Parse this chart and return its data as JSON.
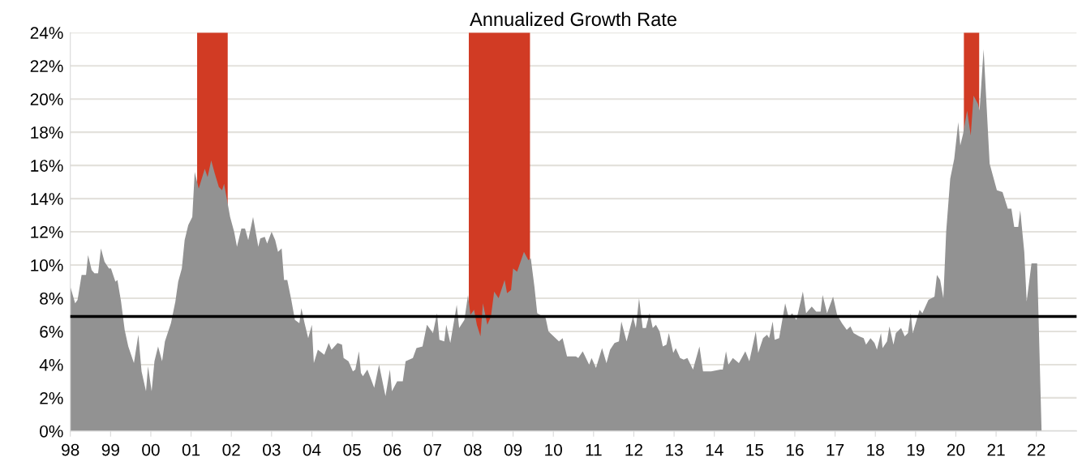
{
  "chart_data": {
    "type": "area",
    "title": "Annualized Growth Rate",
    "series": [
      {
        "color": "#929292",
        "x": [
          1998.0,
          1998.12,
          1998.18,
          1998.28,
          1998.39,
          1998.44,
          1998.53,
          1998.6,
          1998.69,
          1998.76,
          1998.85,
          1998.96,
          1999.01,
          1999.12,
          1999.17,
          1999.26,
          1999.35,
          1999.44,
          1999.58,
          1999.69,
          1999.77,
          1999.88,
          1999.93,
          2000.02,
          2000.09,
          2000.18,
          2000.28,
          2000.35,
          2000.5,
          2000.61,
          2000.68,
          2000.77,
          2000.84,
          2000.93,
          2001.03,
          2001.09,
          2001.19,
          2001.34,
          2001.41,
          2001.5,
          2001.59,
          2001.69,
          2001.77,
          2001.82,
          2001.97,
          2002.07,
          2002.14,
          2002.25,
          2002.34,
          2002.42,
          2002.54,
          2002.67,
          2002.72,
          2002.83,
          2002.89,
          2003.0,
          2003.09,
          2003.16,
          2003.25,
          2003.31,
          2003.39,
          2003.49,
          2003.58,
          2003.69,
          2003.74,
          2003.82,
          2003.91,
          2004.0,
          2004.05,
          2004.15,
          2004.31,
          2004.42,
          2004.49,
          2004.64,
          2004.75,
          2004.79,
          2004.91,
          2005.02,
          2005.08,
          2005.17,
          2005.22,
          2005.27,
          2005.38,
          2005.55,
          2005.67,
          2005.83,
          2005.94,
          2005.99,
          2006.12,
          2006.26,
          2006.33,
          2006.51,
          2006.6,
          2006.75,
          2006.86,
          2007.01,
          2007.11,
          2007.17,
          2007.29,
          2007.34,
          2007.44,
          2007.6,
          2007.66,
          2007.79,
          2007.88,
          2007.94,
          2008.03,
          2008.1,
          2008.19,
          2008.25,
          2008.36,
          2008.45,
          2008.53,
          2008.64,
          2008.79,
          2008.85,
          2008.95,
          2009.0,
          2009.1,
          2009.27,
          2009.38,
          2009.44,
          2009.53,
          2009.6,
          2009.81,
          2009.88,
          2010.14,
          2010.23,
          2010.34,
          2010.56,
          2010.62,
          2010.73,
          2010.89,
          2010.95,
          2011.06,
          2011.21,
          2011.32,
          2011.41,
          2011.52,
          2011.63,
          2011.69,
          2011.82,
          2011.98,
          2012.05,
          2012.13,
          2012.22,
          2012.3,
          2012.39,
          2012.47,
          2012.55,
          2012.64,
          2012.72,
          2012.81,
          2012.87,
          2012.98,
          2013.04,
          2013.15,
          2013.24,
          2013.33,
          2013.47,
          2013.63,
          2013.72,
          2013.92,
          2014.15,
          2014.21,
          2014.29,
          2014.35,
          2014.46,
          2014.61,
          2014.77,
          2014.87,
          2015.03,
          2015.09,
          2015.21,
          2015.31,
          2015.36,
          2015.45,
          2015.5,
          2015.61,
          2015.76,
          2015.85,
          2015.93,
          2016.04,
          2016.2,
          2016.28,
          2016.42,
          2016.53,
          2016.64,
          2016.69,
          2016.8,
          2016.95,
          2017.05,
          2017.17,
          2017.29,
          2017.38,
          2017.46,
          2017.6,
          2017.71,
          2017.77,
          2017.88,
          2017.98,
          2018.04,
          2018.14,
          2018.18,
          2018.29,
          2018.35,
          2018.45,
          2018.51,
          2018.64,
          2018.73,
          2018.81,
          2018.88,
          2018.93,
          2019.1,
          2019.17,
          2019.32,
          2019.47,
          2019.53,
          2019.61,
          2019.69,
          2019.76,
          2019.86,
          2019.96,
          2020.06,
          2020.11,
          2020.18,
          2020.28,
          2020.37,
          2020.44,
          2020.55,
          2020.59,
          2020.69,
          2020.84,
          2021.02,
          2021.16,
          2021.29,
          2021.38,
          2021.45,
          2021.55,
          2021.6,
          2021.7,
          2021.76,
          2021.88,
          2022.02,
          2022.13
        ],
        "values": [
          8.7,
          7.7,
          7.9,
          9.4,
          9.4,
          10.6,
          9.7,
          9.5,
          9.5,
          11.0,
          10.2,
          9.8,
          9.8,
          9.0,
          9.1,
          7.8,
          6.1,
          5.1,
          4.1,
          5.8,
          3.6,
          2.4,
          3.9,
          2.4,
          4.2,
          5.1,
          4.2,
          5.4,
          6.5,
          7.8,
          9.0,
          9.8,
          11.5,
          12.4,
          12.9,
          15.6,
          14.6,
          15.8,
          15.3,
          16.3,
          15.5,
          14.7,
          14.5,
          14.9,
          12.9,
          12.0,
          11.1,
          12.2,
          12.2,
          11.5,
          12.9,
          11.1,
          11.6,
          11.7,
          11.3,
          12.0,
          11.5,
          10.8,
          11.0,
          9.1,
          9.1,
          7.9,
          6.7,
          6.5,
          7.4,
          6.5,
          5.6,
          6.4,
          4.1,
          4.9,
          4.6,
          5.3,
          4.9,
          5.3,
          5.2,
          4.4,
          4.2,
          3.6,
          3.7,
          4.8,
          3.5,
          3.3,
          3.7,
          2.6,
          4.0,
          2.1,
          3.7,
          2.4,
          3.0,
          3.0,
          4.2,
          4.4,
          5.0,
          5.1,
          6.4,
          5.9,
          7.1,
          5.5,
          5.4,
          6.4,
          5.3,
          7.6,
          6.2,
          6.7,
          8.2,
          7.0,
          7.3,
          6.4,
          5.7,
          7.7,
          6.4,
          6.9,
          8.4,
          8.0,
          9.1,
          8.3,
          8.5,
          9.8,
          9.6,
          10.8,
          10.3,
          10.4,
          8.7,
          7.1,
          6.8,
          6.0,
          5.4,
          5.6,
          4.5,
          4.5,
          4.4,
          4.8,
          4.0,
          4.4,
          3.8,
          5.0,
          4.1,
          4.9,
          5.3,
          5.4,
          6.6,
          5.4,
          6.9,
          6.2,
          8.0,
          6.2,
          6.2,
          7.1,
          6.2,
          6.4,
          6.0,
          5.1,
          5.2,
          5.9,
          4.7,
          5.0,
          4.4,
          4.3,
          4.4,
          3.7,
          5.1,
          3.6,
          3.6,
          3.7,
          3.7,
          4.8,
          4.0,
          4.4,
          4.1,
          4.8,
          4.2,
          6.0,
          4.7,
          5.6,
          5.8,
          5.6,
          6.6,
          5.5,
          5.6,
          7.7,
          6.8,
          7.1,
          6.7,
          8.4,
          7.1,
          7.5,
          7.2,
          7.2,
          8.2,
          7.1,
          8.1,
          7.0,
          6.5,
          6.1,
          6.3,
          5.9,
          5.7,
          5.6,
          5.2,
          5.6,
          5.3,
          4.9,
          5.9,
          5.0,
          5.4,
          6.3,
          5.2,
          5.9,
          6.2,
          5.7,
          5.9,
          7.1,
          5.9,
          7.3,
          7.1,
          7.9,
          8.1,
          9.4,
          9.1,
          8.0,
          12.0,
          15.2,
          16.4,
          18.6,
          17.2,
          17.9,
          19.3,
          17.8,
          20.2,
          19.7,
          19.3,
          23.0,
          16.1,
          14.5,
          14.4,
          13.4,
          13.4,
          12.3,
          12.3,
          13.3,
          10.8,
          7.8,
          10.1,
          10.1,
          0.0
        ]
      }
    ],
    "xlim": [
      1998,
      2023
    ],
    "xticks": [
      {
        "value": 1998,
        "label": "98"
      },
      {
        "value": 1999,
        "label": "99"
      },
      {
        "value": 2000,
        "label": "00"
      },
      {
        "value": 2001,
        "label": "01"
      },
      {
        "value": 2002,
        "label": "02"
      },
      {
        "value": 2003,
        "label": "03"
      },
      {
        "value": 2004,
        "label": "04"
      },
      {
        "value": 2005,
        "label": "05"
      },
      {
        "value": 2006,
        "label": "06"
      },
      {
        "value": 2007,
        "label": "07"
      },
      {
        "value": 2008,
        "label": "08"
      },
      {
        "value": 2009,
        "label": "09"
      },
      {
        "value": 2010,
        "label": "10"
      },
      {
        "value": 2011,
        "label": "11"
      },
      {
        "value": 2012,
        "label": "12"
      },
      {
        "value": 2013,
        "label": "13"
      },
      {
        "value": 2014,
        "label": "14"
      },
      {
        "value": 2015,
        "label": "15"
      },
      {
        "value": 2016,
        "label": "16"
      },
      {
        "value": 2017,
        "label": "17"
      },
      {
        "value": 2018,
        "label": "18"
      },
      {
        "value": 2019,
        "label": "19"
      },
      {
        "value": 2020,
        "label": "20"
      },
      {
        "value": 2021,
        "label": "21"
      },
      {
        "value": 2022,
        "label": "22"
      }
    ],
    "ylim": [
      0,
      24
    ],
    "yticks": [
      {
        "value": 0,
        "label": "0%"
      },
      {
        "value": 2,
        "label": "2%"
      },
      {
        "value": 4,
        "label": "4%"
      },
      {
        "value": 6,
        "label": "6%"
      },
      {
        "value": 8,
        "label": "8%"
      },
      {
        "value": 10,
        "label": "10%"
      },
      {
        "value": 12,
        "label": "12%"
      },
      {
        "value": 14,
        "label": "14%"
      },
      {
        "value": 16,
        "label": "16%"
      },
      {
        "value": 18,
        "label": "18%"
      },
      {
        "value": 20,
        "label": "20%"
      },
      {
        "value": 22,
        "label": "22%"
      },
      {
        "value": 24,
        "label": "24%"
      }
    ],
    "bands": [
      {
        "axis": "x",
        "from": 2001.15,
        "to": 2001.91,
        "color": "#d13b24"
      },
      {
        "axis": "x",
        "from": 2007.9,
        "to": 2009.42,
        "color": "#d13b24"
      },
      {
        "axis": "x",
        "from": 2020.2,
        "to": 2020.58,
        "color": "#d13b24"
      }
    ],
    "ref_lines": [
      {
        "axis": "y",
        "value": 6.9,
        "color": "#000000",
        "line_style": "solid"
      }
    ],
    "grid": "y"
  }
}
